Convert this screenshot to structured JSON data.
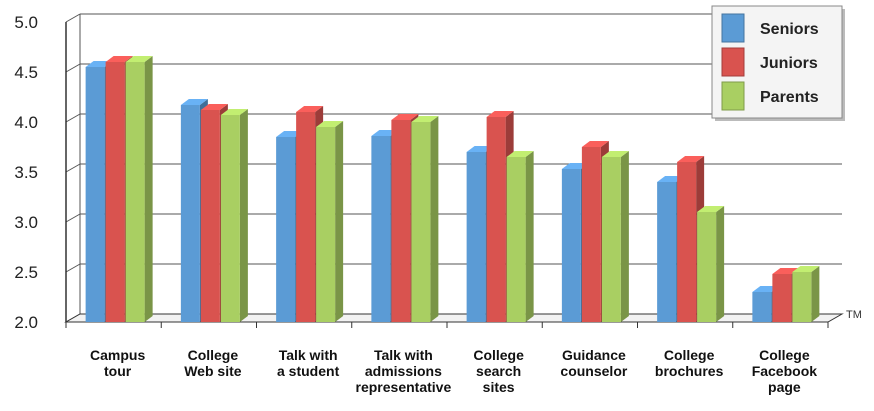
{
  "chart_data": {
    "type": "bar",
    "categories": [
      [
        "Campus",
        "tour"
      ],
      [
        "College",
        "Web site"
      ],
      [
        "Talk with",
        "a student"
      ],
      [
        "Talk with",
        "admissions",
        "representative"
      ],
      [
        "College",
        "search",
        "sites"
      ],
      [
        "Guidance",
        "counselor"
      ],
      [
        "College",
        "brochures"
      ],
      [
        "College",
        "Facebook",
        "page"
      ]
    ],
    "series": [
      {
        "name": "Seniors",
        "color": "#5b9bd5",
        "values": [
          4.55,
          4.17,
          3.85,
          3.86,
          3.7,
          3.53,
          3.4,
          2.3
        ]
      },
      {
        "name": "Juniors",
        "color": "#d9534f",
        "values": [
          4.6,
          4.12,
          4.1,
          4.02,
          4.05,
          3.75,
          3.6,
          2.48
        ]
      },
      {
        "name": "Parents",
        "color": "#a9cf62",
        "values": [
          4.6,
          4.07,
          3.95,
          4.0,
          3.65,
          3.65,
          3.1,
          2.5
        ]
      }
    ],
    "ylim": [
      2.0,
      5.0
    ],
    "yticks": [
      "2.0",
      "2.5",
      "3.0",
      "3.5",
      "4.0",
      "4.5",
      "5.0"
    ],
    "grid": true,
    "legend_position": "top-right",
    "trademark": "TM"
  }
}
